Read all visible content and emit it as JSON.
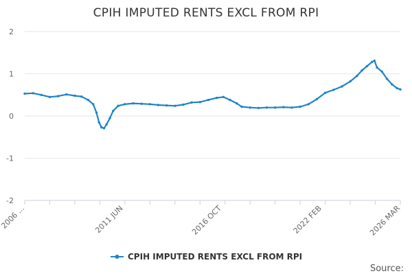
{
  "chart_data": {
    "type": "line",
    "title": "CPIH IMPUTED RENTS EXCL FROM RPI",
    "xlabel": "",
    "ylabel": "",
    "ylim": [
      -2,
      2
    ],
    "yticks": [
      "2",
      "1",
      "0",
      "-1",
      "-2"
    ],
    "x_tick_labels": [
      "2006 ...",
      "2011 JUN",
      "2016 OCT",
      "2022 FEB",
      "2026 MAR"
    ],
    "x_range": [
      "2006 JAN",
      "2026 MAR"
    ],
    "grid": "horizontal",
    "legend_position": "bottom",
    "series": [
      {
        "name": "CPIH IMPUTED RENTS EXCL FROM RPI",
        "color": "#1c84c6",
        "points": [
          [
            2006.0,
            0.53
          ],
          [
            2006.5,
            0.54
          ],
          [
            2007.0,
            0.5
          ],
          [
            2007.5,
            0.45
          ],
          [
            2008.0,
            0.47
          ],
          [
            2008.5,
            0.51
          ],
          [
            2009.0,
            0.48
          ],
          [
            2009.4,
            0.46
          ],
          [
            2009.8,
            0.38
          ],
          [
            2010.1,
            0.28
          ],
          [
            2010.3,
            0.08
          ],
          [
            2010.45,
            -0.15
          ],
          [
            2010.6,
            -0.27
          ],
          [
            2010.75,
            -0.29
          ],
          [
            2010.9,
            -0.2
          ],
          [
            2011.1,
            -0.05
          ],
          [
            2011.3,
            0.12
          ],
          [
            2011.6,
            0.24
          ],
          [
            2012.0,
            0.28
          ],
          [
            2012.5,
            0.3
          ],
          [
            2013.0,
            0.29
          ],
          [
            2013.5,
            0.28
          ],
          [
            2014.0,
            0.26
          ],
          [
            2014.5,
            0.25
          ],
          [
            2015.0,
            0.24
          ],
          [
            2015.5,
            0.27
          ],
          [
            2016.0,
            0.32
          ],
          [
            2016.5,
            0.33
          ],
          [
            2017.0,
            0.38
          ],
          [
            2017.5,
            0.43
          ],
          [
            2017.9,
            0.45
          ],
          [
            2018.3,
            0.38
          ],
          [
            2018.7,
            0.3
          ],
          [
            2019.0,
            0.22
          ],
          [
            2019.5,
            0.2
          ],
          [
            2020.0,
            0.19
          ],
          [
            2020.5,
            0.2
          ],
          [
            2021.0,
            0.2
          ],
          [
            2021.5,
            0.21
          ],
          [
            2022.0,
            0.2
          ],
          [
            2022.5,
            0.22
          ],
          [
            2023.0,
            0.28
          ],
          [
            2023.5,
            0.4
          ],
          [
            2024.0,
            0.55
          ],
          [
            2024.5,
            0.62
          ],
          [
            2025.0,
            0.7
          ],
          [
            2025.5,
            0.82
          ],
          [
            2025.9,
            0.95
          ],
          [
            2026.2,
            1.08
          ],
          [
            2026.5,
            1.18
          ],
          [
            2026.8,
            1.28
          ],
          [
            2026.95,
            1.31
          ],
          [
            2027.1,
            1.15
          ],
          [
            2027.4,
            1.05
          ],
          [
            2027.7,
            0.88
          ],
          [
            2028.0,
            0.75
          ],
          [
            2028.3,
            0.66
          ],
          [
            2028.5,
            0.63
          ]
        ]
      }
    ]
  },
  "footer": {
    "source_label": "Source:"
  }
}
